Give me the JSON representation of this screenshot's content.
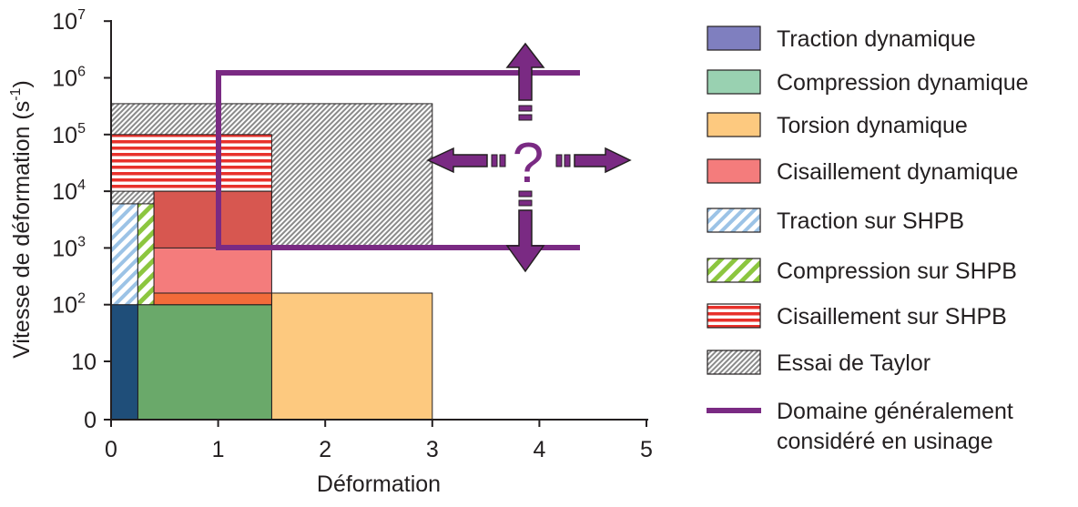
{
  "chart_data": {
    "type": "area",
    "xlabel": "Déformation",
    "ylabel": "Vitesse de déformation (s",
    "ylabel_sup": "-1",
    "ylabel_close": ")",
    "xlim": [
      0,
      5
    ],
    "y_scale": "log (with 0 and 10 at bottom)",
    "x_ticks": [
      "0",
      "1",
      "2",
      "3",
      "4",
      "5"
    ],
    "x_tick_values": [
      0,
      1,
      2,
      3,
      4,
      5
    ],
    "y_ticks": [
      {
        "base": "0",
        "exp": ""
      },
      {
        "base": "10",
        "exp": ""
      },
      {
        "base": "10",
        "exp": "2"
      },
      {
        "base": "10",
        "exp": "3"
      },
      {
        "base": "10",
        "exp": "4"
      },
      {
        "base": "10",
        "exp": "5"
      },
      {
        "base": "10",
        "exp": "6"
      },
      {
        "base": "10",
        "exp": "7"
      }
    ],
    "y_tick_values": [
      0,
      10,
      100,
      1000,
      10000,
      100000,
      1000000,
      10000000
    ],
    "grid": false,
    "legend_position": "right",
    "regions": [
      {
        "name": "Traction dynamique",
        "x": [
          0,
          0.25
        ],
        "y": [
          0,
          100
        ],
        "color": "#1f4e79"
      },
      {
        "name": "Compression dynamique",
        "x": [
          0.25,
          1.5
        ],
        "y": [
          0,
          100
        ],
        "color": "#6aa96a"
      },
      {
        "name": "Torsion dynamique",
        "x": [
          1.5,
          3.0
        ],
        "y": [
          0,
          160
        ],
        "color": "#fdc97f"
      },
      {
        "name": "Cisaillement dynamique",
        "x": [
          0.4,
          1.5
        ],
        "y": [
          100,
          10000
        ],
        "color": "#f47c7c"
      },
      {
        "name": "Traction sur SHPB",
        "x": [
          0,
          0.25
        ],
        "y": [
          100,
          6000
        ],
        "color": "#9cc3e6"
      },
      {
        "name": "Compression sur SHPB",
        "x": [
          0.25,
          0.4
        ],
        "y": [
          100,
          6000
        ],
        "color": "#8cc63f"
      },
      {
        "name": "Cisaillement sur SHPB",
        "x": [
          0,
          1.5
        ],
        "y": [
          10000,
          100000
        ],
        "color": "#e8312b"
      },
      {
        "name": "Essai de Taylor",
        "x": [
          0,
          3.0
        ],
        "y": [
          1000,
          350000
        ],
        "color": "#9d9d9d"
      },
      {
        "name": "Domaine généralement considéré en usinage",
        "x": [
          1.0,
          4.4
        ],
        "y": [
          1000,
          1100000
        ],
        "color": "#7a2a83"
      }
    ],
    "annotation": "?"
  },
  "legend": [
    {
      "lines": [
        "Traction dynamique"
      ],
      "swatch": "solid",
      "fill": "#7f7fbf"
    },
    {
      "lines": [
        "Compression dynamique"
      ],
      "swatch": "solid",
      "fill": "#99d1b1"
    },
    {
      "lines": [
        "Torsion dynamique"
      ],
      "swatch": "solid",
      "fill": "#fdc97f"
    },
    {
      "lines": [
        "Cisaillement dynamique"
      ],
      "swatch": "solid",
      "fill": "#f47c7c"
    },
    {
      "lines": [
        "Traction sur SHPB"
      ],
      "swatch": "diag-blue"
    },
    {
      "lines": [
        "Compression sur SHPB"
      ],
      "swatch": "diag-green"
    },
    {
      "lines": [
        "Cisaillement sur SHPB"
      ],
      "swatch": "horiz-red"
    },
    {
      "lines": [
        "Essai de Taylor"
      ],
      "swatch": "diag-grey"
    },
    {
      "lines": [
        "Domaine généralement",
        "considéré en usinage"
      ],
      "swatch": "line",
      "fill": "#7a2a83"
    }
  ]
}
